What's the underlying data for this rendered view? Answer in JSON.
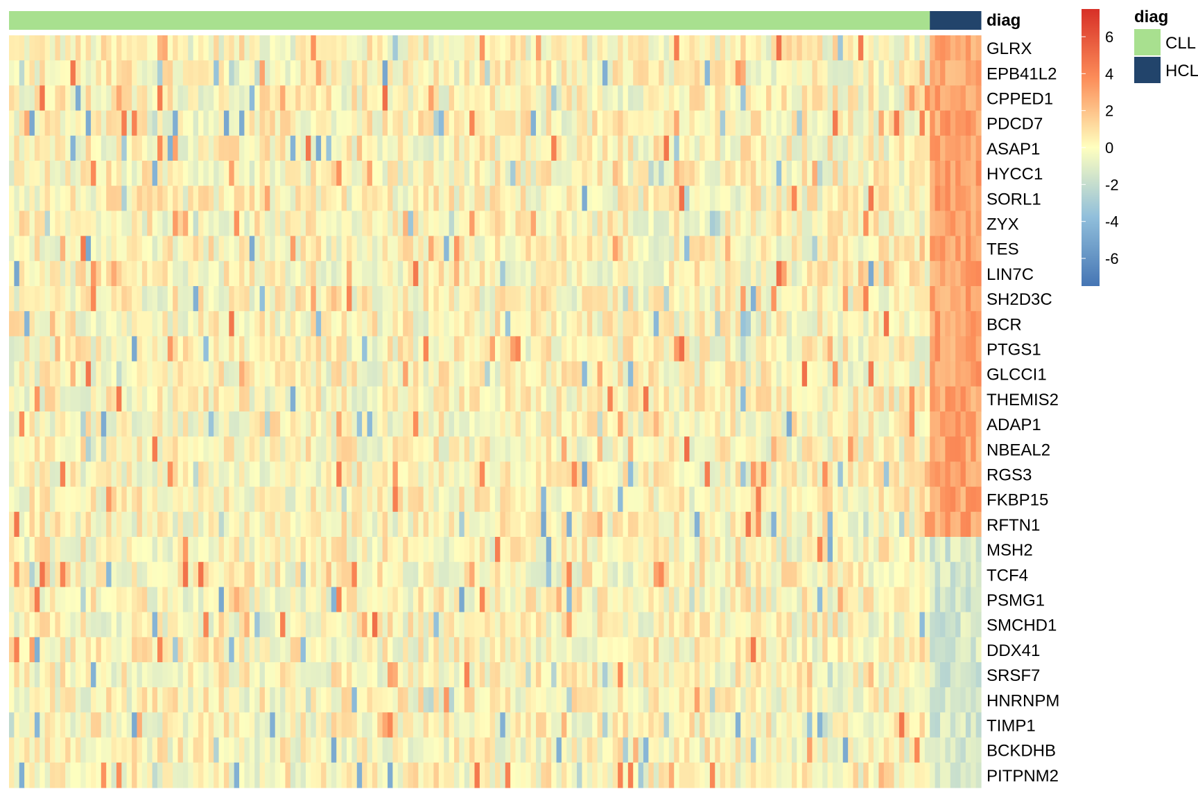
{
  "chart_data": {
    "type": "heatmap",
    "title": "",
    "annotation": {
      "title": "diag",
      "groups": [
        {
          "name": "CLL",
          "color": "#A8E08F",
          "n_samples": 180
        },
        {
          "name": "HCL",
          "color": "#22446B",
          "n_samples": 10
        }
      ]
    },
    "rows": [
      "GLRX",
      "EPB41L2",
      "CPPED1",
      "PDCD7",
      "ASAP1",
      "HYCC1",
      "SORL1",
      "ZYX",
      "TES",
      "LIN7C",
      "SH2D3C",
      "BCR",
      "PTGS1",
      "GLCCI1",
      "THEMIS2",
      "ADAP1",
      "NBEAL2",
      "RGS3",
      "FKBP15",
      "RFTN1",
      "MSH2",
      "TCF4",
      "PSMG1",
      "SMCHD1",
      "DDX41",
      "SRSF7",
      "HNRNPM",
      "TIMP1",
      "BCKDHB",
      "PITPNM2"
    ],
    "row_group_direction": [
      "up",
      "up",
      "up",
      "up",
      "up",
      "up",
      "up",
      "up",
      "up",
      "up",
      "up",
      "up",
      "up",
      "up",
      "up",
      "up",
      "up",
      "up",
      "up",
      "up",
      "down",
      "down",
      "down",
      "down",
      "down",
      "down",
      "down",
      "down",
      "down",
      "down"
    ],
    "hcl_mean_value": {
      "up": 3.0,
      "down": -1.5
    },
    "cll_value_range": [
      -2,
      2
    ],
    "color_scale": {
      "min": -7.5,
      "max": 7.5,
      "ticks": [
        6,
        4,
        2,
        0,
        -2,
        -4,
        -6
      ],
      "tick_labels": [
        "6",
        "4",
        "2",
        "0",
        "-2",
        "-4",
        "-6"
      ],
      "stops": [
        {
          "v": -7.5,
          "c": "#4575B4"
        },
        {
          "v": -3.75,
          "c": "#91BFDB"
        },
        {
          "v": 0,
          "c": "#FFFFBF"
        },
        {
          "v": 3.75,
          "c": "#FC8D59"
        },
        {
          "v": 7.5,
          "c": "#D73027"
        }
      ]
    },
    "grid": false,
    "legend_placement": "right"
  }
}
